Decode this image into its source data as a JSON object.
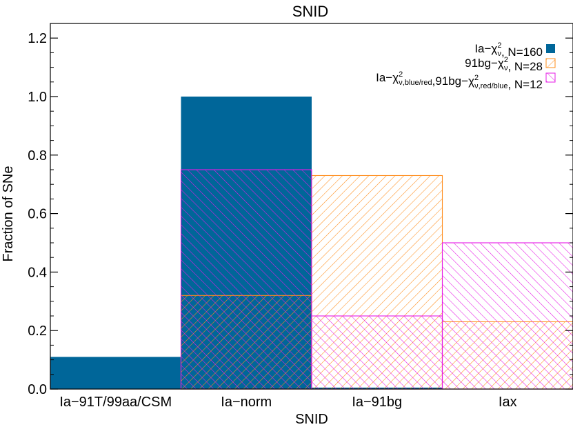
{
  "chart_data": {
    "type": "bar",
    "title": "SNID",
    "xlabel": "SNID",
    "ylabel": "Fraction of SNe",
    "ylim": [
      0,
      1.25
    ],
    "yticks": [
      "0.0",
      "0.2",
      "0.4",
      "0.6",
      "0.8",
      "1.0",
      "1.2"
    ],
    "categories": [
      "Ia−91T/99aa/CSM",
      "Ia−norm",
      "Ia−91bg",
      "Iax"
    ],
    "series": [
      {
        "legend_parts": [
          "Ia−χ",
          "2",
          "ν",
          ", N=160"
        ],
        "fill": "solid",
        "color": "#006699",
        "values": [
          0.11,
          1.0,
          0.005,
          0.0
        ]
      },
      {
        "legend_parts": [
          "91bg−χ",
          "2",
          "ν",
          ", N=28"
        ],
        "fill": "hatch-forward",
        "color": "#FF8C1A",
        "values": [
          0.0,
          0.32,
          0.73,
          0.23
        ]
      },
      {
        "legend_parts": [
          "Ia−χ",
          "2",
          "ν,blue/red",
          ",91bg−χ",
          "2",
          "ν,red/blue",
          ", N=12"
        ],
        "fill": "hatch-back",
        "color": "#E619E6",
        "values": [
          0.0,
          0.75,
          0.25,
          0.5
        ]
      }
    ],
    "legend_position": "top-right",
    "grid": false
  }
}
